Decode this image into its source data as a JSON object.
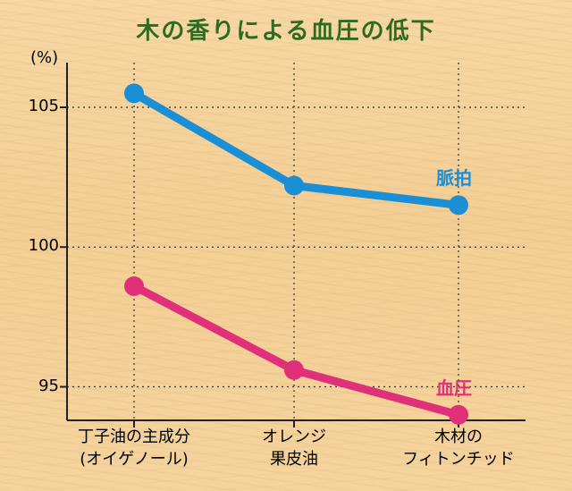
{
  "chart_data": {
    "type": "line",
    "title": "木の香りによる血圧の低下",
    "ylabel": "(%)",
    "ylim": [
      93.8,
      106.6
    ],
    "yticks": [
      95,
      100,
      105
    ],
    "categories": [
      [
        "丁子油の主成分",
        "(オイゲノール)"
      ],
      [
        "オレンジ",
        "果皮油"
      ],
      [
        "木材の",
        "フィトンチッド"
      ]
    ],
    "series": [
      {
        "name": "脈拍",
        "values": [
          105.5,
          102.2,
          101.5
        ],
        "color": "#1a8fd6"
      },
      {
        "name": "血圧",
        "values": [
          98.6,
          95.6,
          94.0
        ],
        "color": "#e0307a"
      }
    ],
    "grid": true,
    "title_color": "#2f6b1e"
  }
}
